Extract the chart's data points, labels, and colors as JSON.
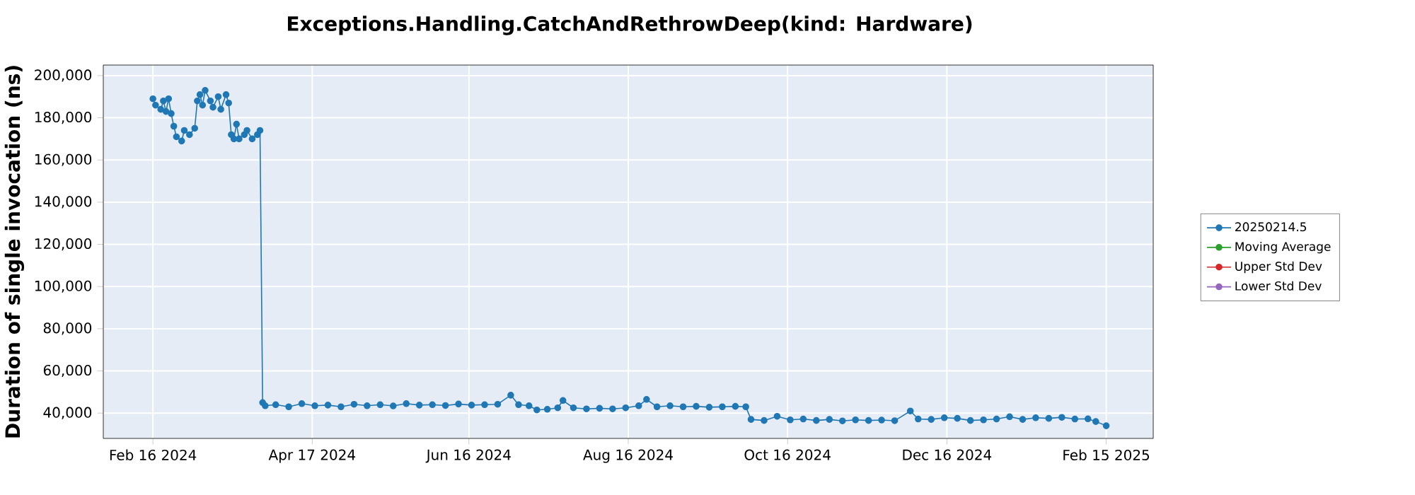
{
  "chart_data": {
    "type": "line",
    "title": "Exceptions.Handling.CatchAndRethrowDeep(kind: Hardware)",
    "ylabel": "Duration of single invocation (ns)",
    "x": [
      "2024-02-16",
      "2024-02-17",
      "2024-02-19",
      "2024-02-20",
      "2024-02-21",
      "2024-02-22",
      "2024-02-23",
      "2024-02-24",
      "2024-02-25",
      "2024-02-27",
      "2024-02-28",
      "2024-03-01",
      "2024-03-03",
      "2024-03-04",
      "2024-03-05",
      "2024-03-06",
      "2024-03-07",
      "2024-03-09",
      "2024-03-10",
      "2024-03-12",
      "2024-03-13",
      "2024-03-15",
      "2024-03-16",
      "2024-03-17",
      "2024-03-18",
      "2024-03-19",
      "2024-03-20",
      "2024-03-22",
      "2024-03-23",
      "2024-03-25",
      "2024-03-27",
      "2024-03-28",
      "2024-03-29",
      "2024-03-30",
      "2024-04-03",
      "2024-04-08",
      "2024-04-13",
      "2024-04-18",
      "2024-04-23",
      "2024-04-28",
      "2024-05-03",
      "2024-05-08",
      "2024-05-13",
      "2024-05-18",
      "2024-05-23",
      "2024-05-28",
      "2024-06-02",
      "2024-06-07",
      "2024-06-12",
      "2024-06-17",
      "2024-06-22",
      "2024-06-27",
      "2024-07-02",
      "2024-07-05",
      "2024-07-09",
      "2024-07-12",
      "2024-07-16",
      "2024-07-20",
      "2024-07-22",
      "2024-07-26",
      "2024-07-31",
      "2024-08-05",
      "2024-08-10",
      "2024-08-15",
      "2024-08-20",
      "2024-08-23",
      "2024-08-27",
      "2024-09-01",
      "2024-09-06",
      "2024-09-11",
      "2024-09-16",
      "2024-09-21",
      "2024-09-26",
      "2024-09-30",
      "2024-10-02",
      "2024-10-07",
      "2024-10-12",
      "2024-10-17",
      "2024-10-22",
      "2024-10-27",
      "2024-11-01",
      "2024-11-06",
      "2024-11-11",
      "2024-11-16",
      "2024-11-21",
      "2024-11-26",
      "2024-12-02",
      "2024-12-05",
      "2024-12-10",
      "2024-12-15",
      "2024-12-20",
      "2024-12-25",
      "2024-12-30",
      "2025-01-04",
      "2025-01-09",
      "2025-01-14",
      "2025-01-19",
      "2025-01-24",
      "2025-01-29",
      "2025-02-03",
      "2025-02-08",
      "2025-02-11",
      "2025-02-15"
    ],
    "series": [
      {
        "name": "20250214.5",
        "color": "#1f77b4",
        "values": [
          189000,
          186000,
          184000,
          188000,
          183000,
          189000,
          182000,
          176000,
          171000,
          169000,
          174000,
          172000,
          175000,
          188000,
          191000,
          186000,
          193000,
          188000,
          185000,
          190000,
          184000,
          191000,
          187000,
          172000,
          170000,
          177000,
          170000,
          172000,
          174000,
          170000,
          172000,
          174000,
          45000,
          43500,
          44000,
          43000,
          44500,
          43500,
          43800,
          43000,
          44200,
          43500,
          44000,
          43400,
          44500,
          43800,
          44000,
          43600,
          44300,
          43800,
          44000,
          44200,
          48500,
          44000,
          43500,
          41500,
          41800,
          42500,
          46000,
          42500,
          42000,
          42300,
          42000,
          42500,
          43500,
          46500,
          43000,
          43500,
          43000,
          43200,
          42800,
          43000,
          43200,
          43000,
          37000,
          36500,
          38500,
          36800,
          37200,
          36500,
          37000,
          36300,
          36800,
          36500,
          36700,
          36400,
          41000,
          37200,
          37000,
          37800,
          37500,
          36500,
          36800,
          37200,
          38300,
          37000,
          37800,
          37500,
          38000,
          37200,
          37300,
          36000,
          34000
        ]
      },
      {
        "name": "Moving Average",
        "color": "#2ca02c",
        "values": [
          null,
          null,
          null,
          null,
          null,
          null,
          null,
          null,
          null,
          null,
          null,
          null,
          null,
          null,
          null,
          null,
          null,
          null,
          null,
          null,
          null,
          null,
          null,
          null,
          null,
          null,
          null,
          null,
          null,
          null,
          null,
          null,
          null,
          null,
          null,
          null,
          null,
          null,
          null,
          null,
          null,
          null,
          null,
          null,
          null,
          null,
          null,
          null,
          null,
          null,
          null,
          null,
          null,
          null,
          null,
          null,
          null,
          null,
          null,
          null,
          null,
          null,
          null,
          null,
          null,
          null,
          null,
          null,
          null,
          null,
          null,
          null,
          null,
          null,
          null,
          null,
          null,
          null,
          null,
          null,
          null,
          null,
          null,
          null,
          null,
          null,
          null,
          null,
          null,
          null,
          null,
          null,
          null,
          null,
          null,
          null,
          null,
          null,
          null,
          null,
          null,
          null,
          null
        ]
      },
      {
        "name": "Upper Std Dev",
        "color": "#d62728",
        "values": [
          null,
          null,
          null,
          null,
          null,
          null,
          null,
          null,
          null,
          null,
          null,
          null,
          null,
          null,
          null,
          null,
          null,
          null,
          null,
          null,
          null,
          null,
          null,
          null,
          null,
          null,
          null,
          null,
          null,
          null,
          null,
          null,
          null,
          null,
          null,
          null,
          null,
          null,
          null,
          null,
          null,
          null,
          null,
          null,
          null,
          null,
          null,
          null,
          null,
          null,
          null,
          null,
          null,
          null,
          null,
          null,
          null,
          null,
          null,
          null,
          null,
          null,
          null,
          null,
          null,
          null,
          null,
          null,
          null,
          null,
          null,
          null,
          null,
          null,
          null,
          null,
          null,
          null,
          null,
          null,
          null,
          null,
          null,
          null,
          null,
          null,
          null,
          null,
          null,
          null,
          null,
          null,
          null,
          null,
          null,
          null,
          null,
          null,
          null,
          null,
          null,
          null,
          null
        ]
      },
      {
        "name": "Lower Std Dev",
        "color": "#9467bd",
        "values": [
          null,
          null,
          null,
          null,
          null,
          null,
          null,
          null,
          null,
          null,
          null,
          null,
          null,
          null,
          null,
          null,
          null,
          null,
          null,
          null,
          null,
          null,
          null,
          null,
          null,
          null,
          null,
          null,
          null,
          null,
          null,
          null,
          null,
          null,
          null,
          null,
          null,
          null,
          null,
          null,
          null,
          null,
          null,
          null,
          null,
          null,
          null,
          null,
          null,
          null,
          null,
          null,
          null,
          null,
          null,
          null,
          null,
          null,
          null,
          null,
          null,
          null,
          null,
          null,
          null,
          null,
          null,
          null,
          null,
          null,
          null,
          null,
          null,
          null,
          null,
          null,
          null,
          null,
          null,
          null,
          null,
          null,
          null,
          null,
          null,
          null,
          null,
          null,
          null,
          null,
          null,
          null,
          null,
          null,
          null,
          null,
          null,
          null,
          null,
          null,
          null,
          null,
          null
        ]
      }
    ],
    "xlim": [
      "2024-01-28",
      "2025-03-05"
    ],
    "xticks": [
      {
        "value": "2024-02-16",
        "label": "Feb 16 2024"
      },
      {
        "value": "2024-04-17",
        "label": "Apr 17 2024"
      },
      {
        "value": "2024-06-16",
        "label": "Jun 16 2024"
      },
      {
        "value": "2024-08-16",
        "label": "Aug 16 2024"
      },
      {
        "value": "2024-10-16",
        "label": "Oct 16 2024"
      },
      {
        "value": "2024-12-16",
        "label": "Dec 16 2024"
      },
      {
        "value": "2025-02-15",
        "label": "Feb 15 2025"
      }
    ],
    "ylim": [
      28000,
      205000
    ],
    "yticks": [
      {
        "value": 40000,
        "label": "40,000"
      },
      {
        "value": 60000,
        "label": "60,000"
      },
      {
        "value": 80000,
        "label": "80,000"
      },
      {
        "value": 100000,
        "label": "100,000"
      },
      {
        "value": 120000,
        "label": "120,000"
      },
      {
        "value": 140000,
        "label": "140,000"
      },
      {
        "value": 160000,
        "label": "160,000"
      },
      {
        "value": 180000,
        "label": "180,000"
      },
      {
        "value": 200000,
        "label": "200,000"
      }
    ],
    "grid": true,
    "legend": "right",
    "marker": "circle",
    "line_style": "solid"
  }
}
